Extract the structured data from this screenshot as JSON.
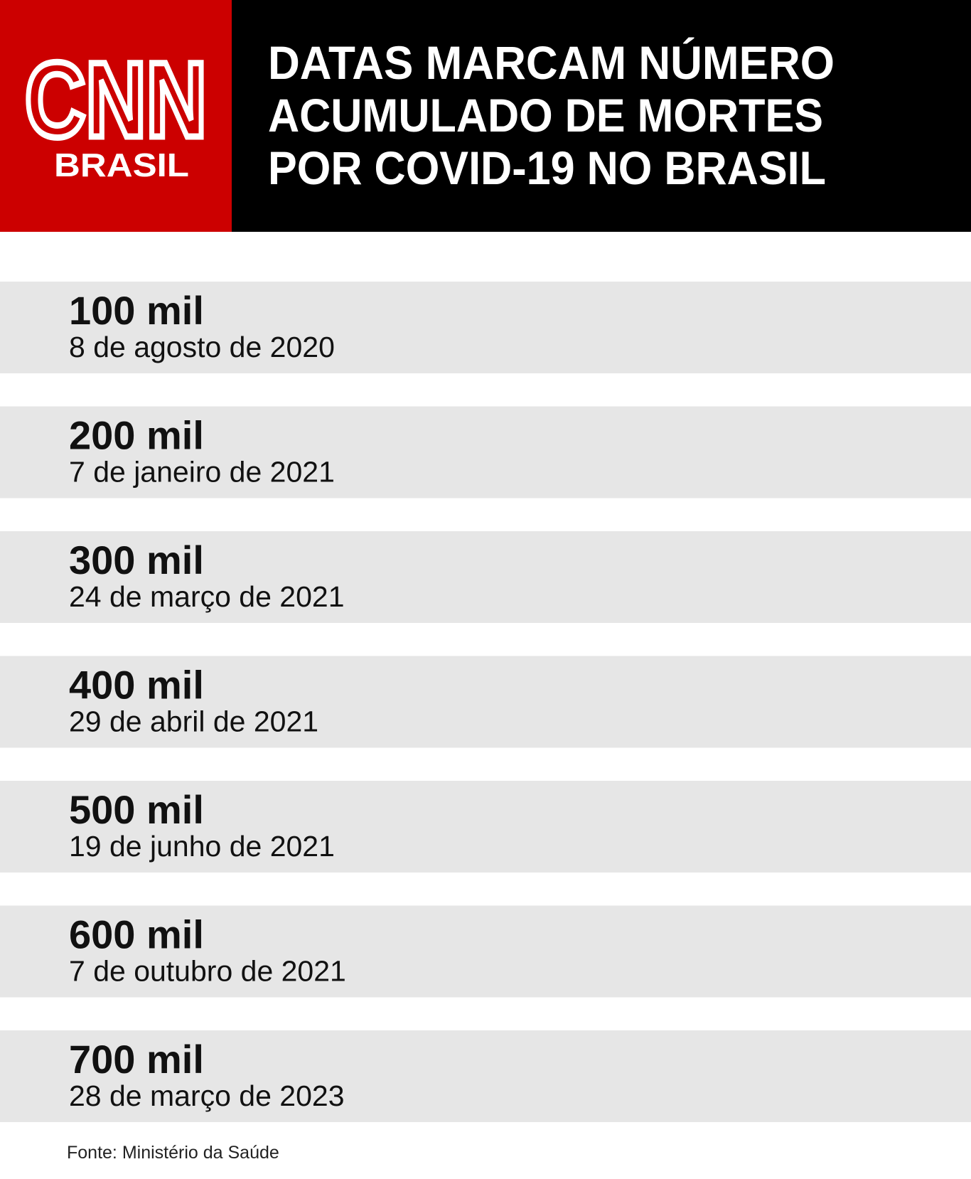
{
  "logo": {
    "name": "CNN",
    "sub": "BRASIL"
  },
  "header": {
    "title": [
      "DATAS MARCAM NÚMERO",
      "ACUMULADO DE MORTES",
      "POR COVID-19 NO BRASIL"
    ]
  },
  "rows": [
    {
      "value": "100 mil",
      "date": "8 de agosto de 2020"
    },
    {
      "value": "200 mil",
      "date": "7 de janeiro de 2021"
    },
    {
      "value": "300 mil",
      "date": "24 de março de 2021"
    },
    {
      "value": "400 mil",
      "date": "29 de abril de 2021"
    },
    {
      "value": "500 mil",
      "date": "19 de junho de 2021"
    },
    {
      "value": "600 mil",
      "date": "7 de outubro de 2021"
    },
    {
      "value": "700 mil",
      "date": "28 de março de 2023"
    }
  ],
  "source": "Fonte: Ministério da Saúde"
}
